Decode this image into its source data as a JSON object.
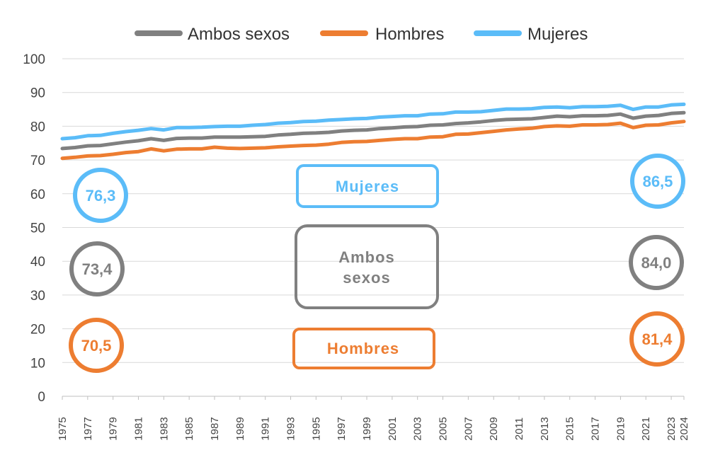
{
  "chart_data": {
    "type": "line",
    "x": [
      1975,
      1976,
      1977,
      1978,
      1979,
      1980,
      1981,
      1982,
      1983,
      1984,
      1985,
      1986,
      1987,
      1988,
      1989,
      1990,
      1991,
      1992,
      1993,
      1994,
      1995,
      1996,
      1997,
      1998,
      1999,
      2000,
      2001,
      2002,
      2003,
      2004,
      2005,
      2006,
      2007,
      2008,
      2009,
      2010,
      2011,
      2012,
      2013,
      2014,
      2015,
      2016,
      2017,
      2018,
      2019,
      2020,
      2021,
      2022,
      2023,
      2024
    ],
    "x_tick_labels": [
      "1975",
      "1977",
      "1979",
      "1981",
      "1983",
      "1985",
      "1987",
      "1989",
      "1991",
      "1993",
      "1995",
      "1997",
      "1999",
      "2001",
      "2003",
      "2005",
      "2007",
      "2009",
      "2011",
      "2013",
      "2015",
      "2017",
      "2019",
      "2021",
      "2023",
      "2024"
    ],
    "ylim": [
      0,
      100
    ],
    "y_ticks": [
      "0",
      "10",
      "20",
      "30",
      "40",
      "50",
      "60",
      "70",
      "80",
      "90",
      "100"
    ],
    "grid": true,
    "legend_position": "top-center",
    "series": [
      {
        "name": "Ambos sexos",
        "color": "#808080",
        "values": [
          73.4,
          73.7,
          74.2,
          74.3,
          74.8,
          75.3,
          75.7,
          76.3,
          75.8,
          76.4,
          76.5,
          76.5,
          76.8,
          76.8,
          76.8,
          76.9,
          77.0,
          77.4,
          77.6,
          77.9,
          78.0,
          78.2,
          78.6,
          78.8,
          78.9,
          79.3,
          79.5,
          79.8,
          79.9,
          80.3,
          80.4,
          80.8,
          81.0,
          81.3,
          81.7,
          82.0,
          82.1,
          82.2,
          82.6,
          83.0,
          82.8,
          83.1,
          83.1,
          83.2,
          83.6,
          82.4,
          83.0,
          83.2,
          83.8,
          84.0
        ]
      },
      {
        "name": "Hombres",
        "color": "#ED7D31",
        "values": [
          70.5,
          70.8,
          71.2,
          71.3,
          71.7,
          72.2,
          72.5,
          73.3,
          72.7,
          73.2,
          73.3,
          73.3,
          73.8,
          73.5,
          73.4,
          73.5,
          73.6,
          73.9,
          74.1,
          74.3,
          74.4,
          74.7,
          75.2,
          75.4,
          75.5,
          75.8,
          76.1,
          76.3,
          76.3,
          76.8,
          76.9,
          77.6,
          77.7,
          78.1,
          78.5,
          78.9,
          79.2,
          79.4,
          79.9,
          80.1,
          80.0,
          80.4,
          80.4,
          80.5,
          80.9,
          79.6,
          80.3,
          80.4,
          81.0,
          81.4
        ]
      },
      {
        "name": "Mujeres",
        "color": "#5BBCF8",
        "values": [
          76.3,
          76.6,
          77.2,
          77.3,
          77.9,
          78.4,
          78.8,
          79.3,
          78.9,
          79.6,
          79.6,
          79.7,
          79.9,
          80.0,
          80.0,
          80.3,
          80.5,
          80.9,
          81.1,
          81.4,
          81.5,
          81.8,
          82.0,
          82.2,
          82.3,
          82.7,
          82.9,
          83.1,
          83.1,
          83.6,
          83.7,
          84.2,
          84.2,
          84.3,
          84.7,
          85.1,
          85.1,
          85.2,
          85.6,
          85.7,
          85.5,
          85.8,
          85.8,
          85.9,
          86.2,
          85.0,
          85.7,
          85.7,
          86.3,
          86.5
        ]
      }
    ],
    "box_labels": [
      {
        "text": "Mujeres",
        "color": "#5BBCF8"
      },
      {
        "text": "Ambos sexos",
        "line1": "Ambos",
        "line2": "sexos",
        "color": "#808080"
      },
      {
        "text": "Hombres",
        "color": "#ED7D31"
      }
    ],
    "circle_labels": [
      {
        "text": "76,3",
        "color": "#5BBCF8"
      },
      {
        "text": "86,5",
        "color": "#5BBCF8"
      },
      {
        "text": "73,4",
        "color": "#808080"
      },
      {
        "text": "84,0",
        "color": "#808080"
      },
      {
        "text": "70,5",
        "color": "#ED7D31"
      },
      {
        "text": "81,4",
        "color": "#ED7D31"
      }
    ]
  }
}
